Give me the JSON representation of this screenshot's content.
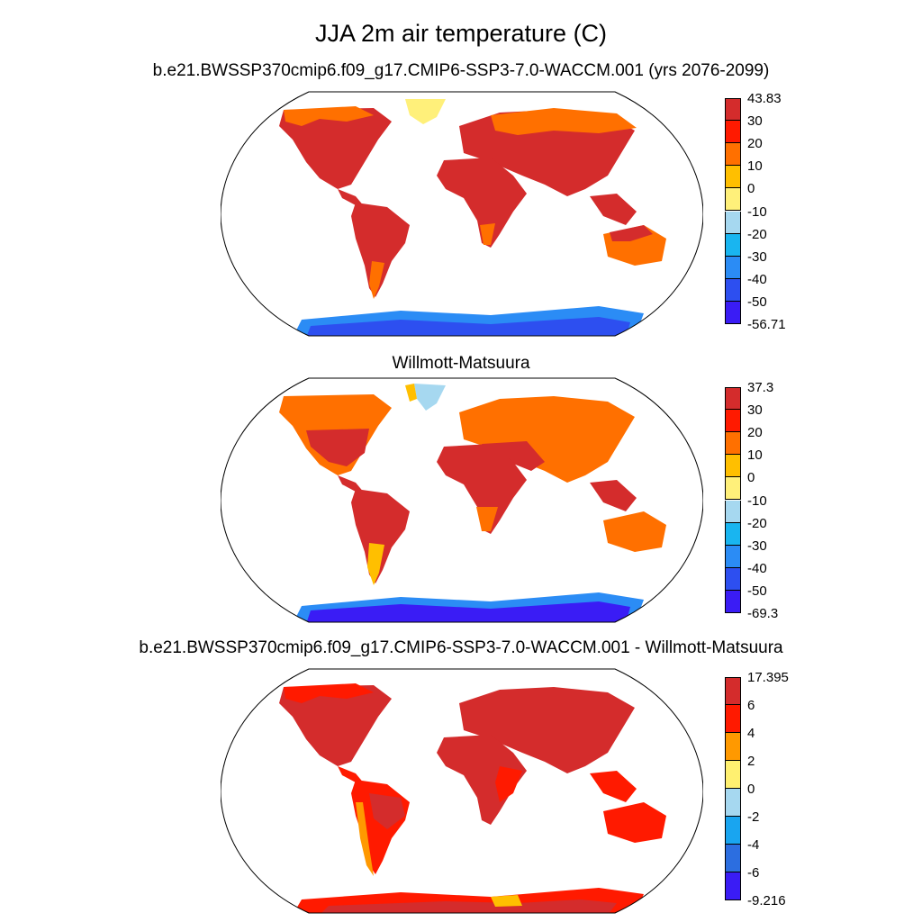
{
  "title": "JJA 2m air temperature (C)",
  "panels": [
    {
      "subtitle": "b.e21.BWSSP370cmip6.f09_g17.CMIP6-SSP3-7.0-WACCM.001 (yrs 2076-2099)",
      "colorbar": {
        "labels": [
          "43.83",
          "30",
          "20",
          "10",
          "0",
          "-10",
          "-20",
          "-30",
          "-40",
          "-50",
          "-56.71"
        ],
        "colors": [
          "#d42c2c",
          "#ff1a00",
          "#ff7000",
          "#ffbf00",
          "#fff07a",
          "#a6d8f0",
          "#19b5f0",
          "#2b8cf5",
          "#2d4ff0",
          "#3a1cf5"
        ]
      }
    },
    {
      "subtitle": "Willmott-Matsuura",
      "colorbar": {
        "labels": [
          "37.3",
          "30",
          "20",
          "10",
          "0",
          "-10",
          "-20",
          "-30",
          "-40",
          "-50",
          "-69.3"
        ],
        "colors": [
          "#d42c2c",
          "#ff1a00",
          "#ff7000",
          "#ffbf00",
          "#fff07a",
          "#a6d8f0",
          "#19b5f0",
          "#2b8cf5",
          "#2d4ff0",
          "#3a1cf5"
        ]
      }
    },
    {
      "subtitle": "b.e21.BWSSP370cmip6.f09_g17.CMIP6-SSP3-7.0-WACCM.001 - Willmott-Matsuura",
      "colorbar": {
        "labels": [
          "17.395",
          "6",
          "4",
          "2",
          "0",
          "-2",
          "-4",
          "-6",
          "-9.216"
        ],
        "colors": [
          "#d42c2c",
          "#ff1a00",
          "#ff9900",
          "#fff070",
          "#a6d8f0",
          "#19a5f0",
          "#2c6ee0",
          "#3a1cf5"
        ]
      }
    }
  ]
}
